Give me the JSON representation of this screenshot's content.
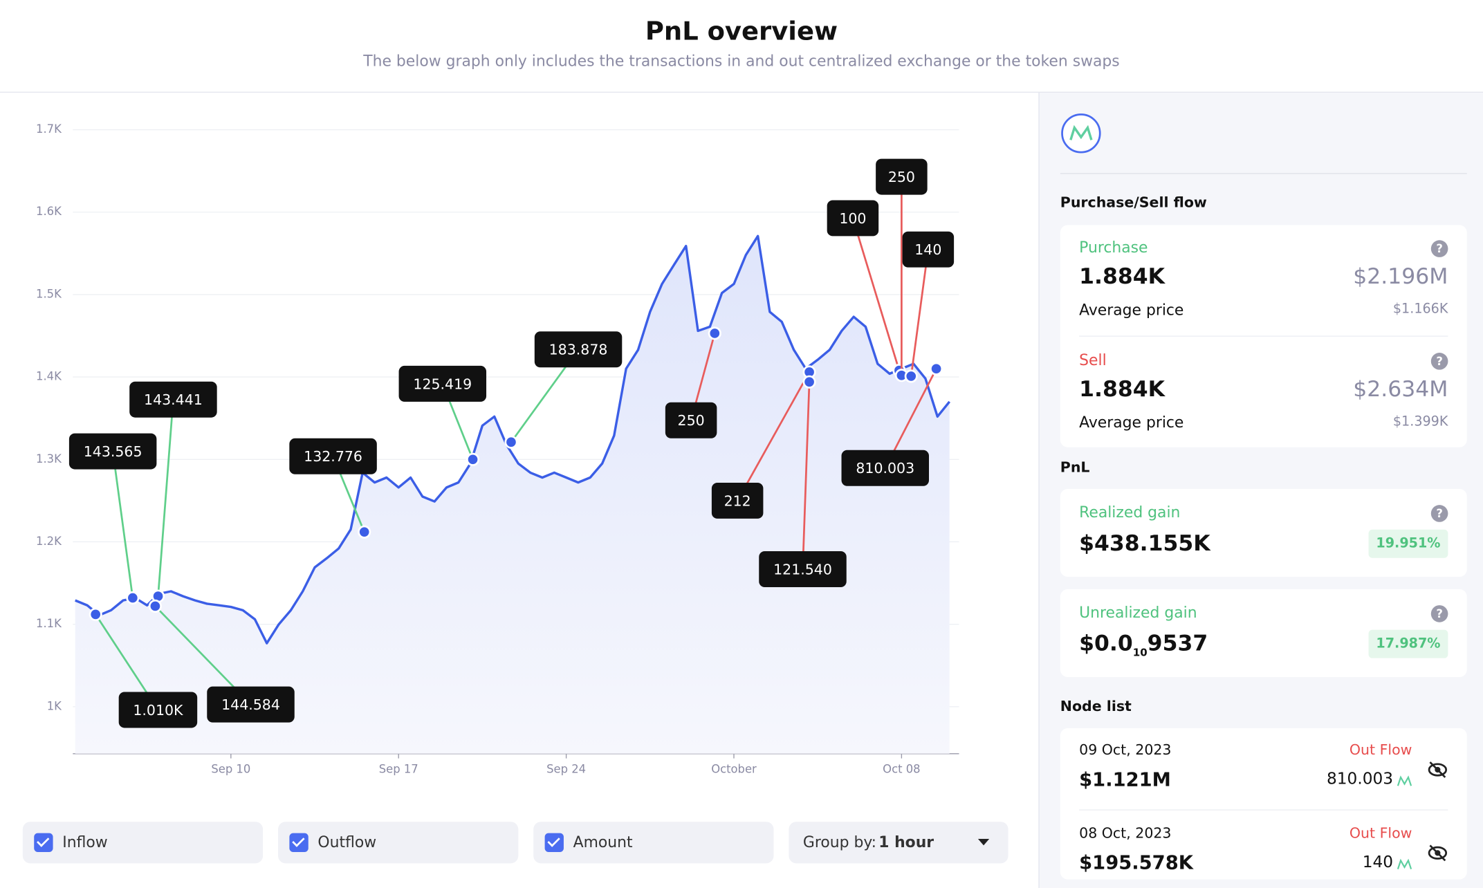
{
  "header": {
    "title": "PnL overview",
    "subtitle": "The below graph only includes the transactions in and out centralized exchange or the token swaps"
  },
  "chart_data": {
    "type": "line",
    "color": "#3b5ee6",
    "inflow_color": "#5fcf8a",
    "outflow_color": "#e85c5c",
    "grid": true,
    "x": [
      3.5,
      4,
      4.5,
      5,
      5.5,
      6,
      6.5,
      7,
      7.5,
      8,
      8.5,
      9,
      9.5,
      10,
      10.5,
      11,
      11.5,
      12,
      12.5,
      13,
      13.5,
      14,
      14.5,
      15,
      15.5,
      16,
      16.5,
      17,
      17.5,
      18,
      18.5,
      19,
      19.5,
      20,
      20.5,
      21,
      21.5,
      22,
      22.5,
      23,
      23.5,
      24,
      24.5,
      25,
      25.5,
      26,
      26.5,
      27,
      27.5,
      28,
      28.5,
      29,
      29.5,
      30,
      30.5,
      31,
      31.5,
      32,
      32.5,
      33,
      33.5,
      34,
      34.5,
      35,
      35.5,
      36,
      36.5,
      37,
      37.5,
      38,
      38.5,
      39,
      39.5,
      40
    ],
    "values": [
      1129,
      1123,
      1111,
      1117,
      1129,
      1132,
      1123,
      1137,
      1140,
      1134,
      1129,
      1125,
      1123,
      1121,
      1117,
      1106,
      1077,
      1100,
      1117,
      1140,
      1169,
      1180,
      1192,
      1215,
      1284,
      1272,
      1278,
      1266,
      1278,
      1255,
      1249,
      1266,
      1272,
      1295,
      1341,
      1352,
      1318,
      1295,
      1284,
      1278,
      1284,
      1278,
      1272,
      1278,
      1295,
      1329,
      1410,
      1433,
      1479,
      1513,
      1536,
      1559,
      1456,
      1461,
      1502,
      1513,
      1548,
      1571,
      1479,
      1467,
      1433,
      1410,
      1421,
      1433,
      1456,
      1473,
      1461,
      1416,
      1404,
      1410,
      1416,
      1398,
      1352,
      1370
    ],
    "xlim": [
      3.4,
      40.4
    ],
    "xticks": [
      {
        "value": 10,
        "label": "Sep 10"
      },
      {
        "value": 17,
        "label": "Sep 17"
      },
      {
        "value": 24,
        "label": "Sep 24"
      },
      {
        "value": 31,
        "label": "October"
      },
      {
        "value": 38,
        "label": "Oct 08"
      }
    ],
    "ylim": [
      943,
      1722
    ],
    "yticks": [
      {
        "value": 1000,
        "label": "1K"
      },
      {
        "value": 1100,
        "label": "1.1K"
      },
      {
        "value": 1200,
        "label": "1.2K"
      },
      {
        "value": 1300,
        "label": "1.3K"
      },
      {
        "value": 1400,
        "label": "1.4K"
      },
      {
        "value": 1500,
        "label": "1.5K"
      },
      {
        "value": 1600,
        "label": "1.6K"
      },
      {
        "value": 1700,
        "label": "1.7K"
      }
    ],
    "inflow_annotations": [
      {
        "label": "143.565",
        "x": 5.9,
        "y": 1132
      },
      {
        "label": "143.441",
        "x": 6.96,
        "y": 1134
      },
      {
        "label": "1.010K",
        "x": 4.35,
        "y": 1112
      },
      {
        "label": "144.584",
        "x": 6.84,
        "y": 1122
      },
      {
        "label": "132.776",
        "x": 15.57,
        "y": 1212
      },
      {
        "label": "125.419",
        "x": 20.1,
        "y": 1300
      },
      {
        "label": "183.878",
        "x": 21.7,
        "y": 1321
      }
    ],
    "outflow_annotations": [
      {
        "label": "250",
        "x": 30.2,
        "y": 1453
      },
      {
        "label": "212",
        "x": 34.15,
        "y": 1406
      },
      {
        "label": "121.540",
        "x": 34.15,
        "y": 1394
      },
      {
        "label": "100",
        "x": 37.9,
        "y": 1408
      },
      {
        "label": "250",
        "x": 38.0,
        "y": 1402
      },
      {
        "label": "140",
        "x": 38.4,
        "y": 1401
      },
      {
        "label": "810.003",
        "x": 39.45,
        "y": 1410
      }
    ]
  },
  "controls": {
    "checkboxes": [
      "Inflow",
      "Outflow",
      "Amount"
    ],
    "group_label": "Group by:",
    "group_value": "1 hour"
  },
  "sidebar": {
    "flow_title": "Purchase/Sell flow",
    "purchase": {
      "label": "Purchase",
      "amount": "1.884K",
      "usd": "$2.196M",
      "avg_label": "Average price",
      "avg": "$1.166K"
    },
    "sell": {
      "label": "Sell",
      "amount": "1.884K",
      "usd": "$2.634M",
      "avg_label": "Average price",
      "avg": "$1.399K"
    },
    "pnl_title": "PnL",
    "realized": {
      "label": "Realized gain",
      "value": "$438.155K",
      "pct": "19.951%"
    },
    "unrealized": {
      "label": "Unrealized gain",
      "value_parts": [
        "$0.0",
        "10",
        "9537"
      ],
      "pct": "17.987%"
    },
    "node_title": "Node list",
    "nodes": [
      {
        "date": "09 Oct, 2023",
        "flow": "Out Flow",
        "usd": "$1.121M",
        "amount": "810.003"
      },
      {
        "date": "08 Oct, 2023",
        "flow": "Out Flow",
        "usd": "$195.578K",
        "amount": "140"
      }
    ]
  }
}
